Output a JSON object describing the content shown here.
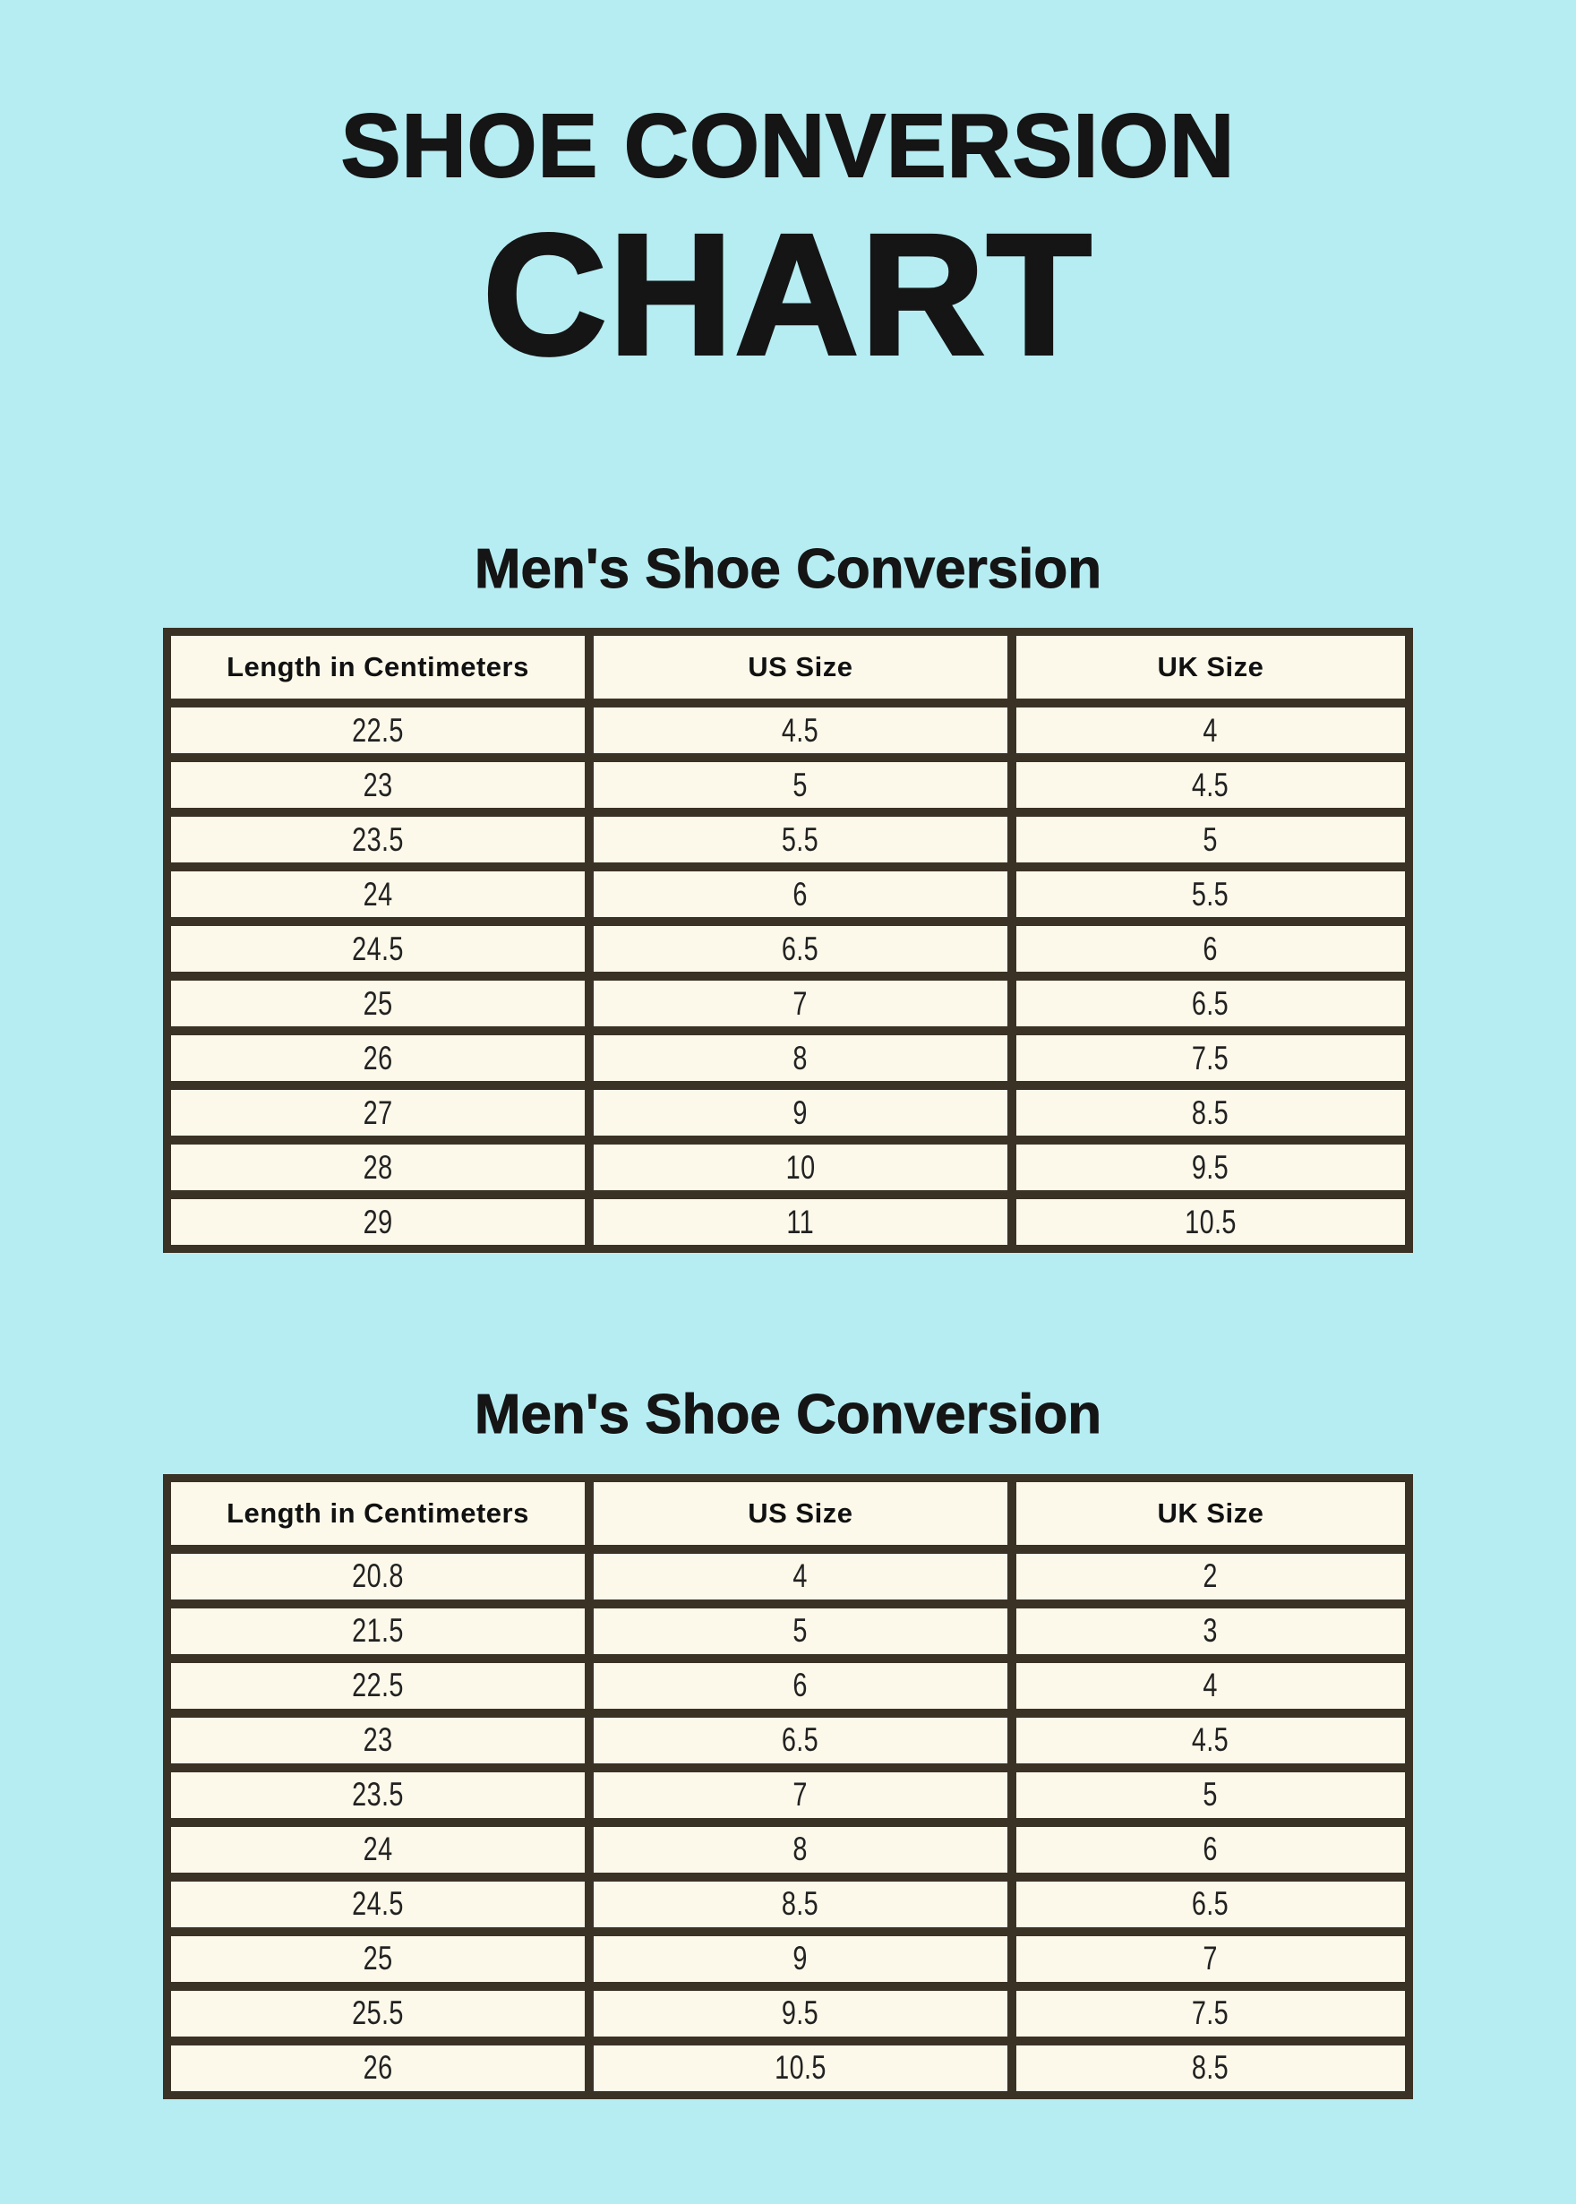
{
  "header": {
    "title_line1": "SHOE CONVERSION",
    "title_line2": "CHART"
  },
  "colors": {
    "background": "#b6edf3",
    "cell_background": "#fdf9ea",
    "table_border": "#3b3226",
    "text": "#151515"
  },
  "chart_data": [
    {
      "type": "table",
      "title": "Men's Shoe Conversion",
      "columns": [
        "Length in Centimeters",
        "US Size",
        "UK Size"
      ],
      "rows": [
        [
          "22.5",
          "4.5",
          "4"
        ],
        [
          "23",
          "5",
          "4.5"
        ],
        [
          "23.5",
          "5.5",
          "5"
        ],
        [
          "24",
          "6",
          "5.5"
        ],
        [
          "24.5",
          "6.5",
          "6"
        ],
        [
          "25",
          "7",
          "6.5"
        ],
        [
          "26",
          "8",
          "7.5"
        ],
        [
          "27",
          "9",
          "8.5"
        ],
        [
          "28",
          "10",
          "9.5"
        ],
        [
          "29",
          "11",
          "10.5"
        ]
      ]
    },
    {
      "type": "table",
      "title": "Men's Shoe Conversion",
      "columns": [
        "Length in Centimeters",
        "US Size",
        "UK Size"
      ],
      "rows": [
        [
          "20.8",
          "4",
          "2"
        ],
        [
          "21.5",
          "5",
          "3"
        ],
        [
          "22.5",
          "6",
          "4"
        ],
        [
          "23",
          "6.5",
          "4.5"
        ],
        [
          "23.5",
          "7",
          "5"
        ],
        [
          "24",
          "8",
          "6"
        ],
        [
          "24.5",
          "8.5",
          "6.5"
        ],
        [
          "25",
          "9",
          "7"
        ],
        [
          "25.5",
          "9.5",
          "7.5"
        ],
        [
          "26",
          "10.5",
          "8.5"
        ]
      ]
    }
  ]
}
